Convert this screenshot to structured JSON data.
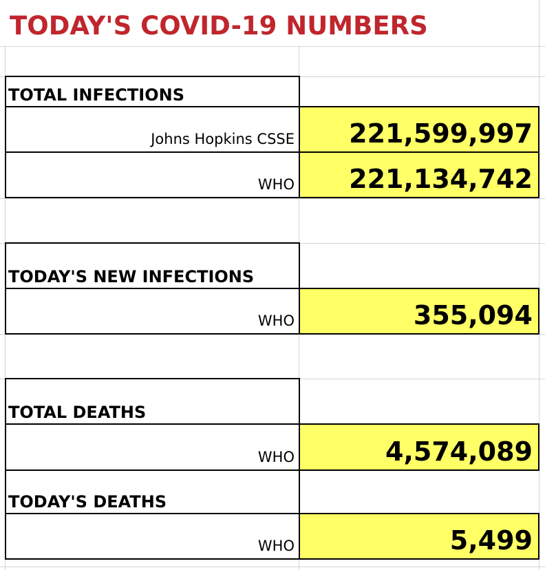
{
  "title": "TODAY'S COVID-19 NUMBERS",
  "sections": {
    "total_infections": {
      "label": "TOTAL INFECTIONS",
      "rows": [
        {
          "source": "Johns Hopkins CSSE",
          "value": "221,599,997"
        },
        {
          "source": "WHO",
          "value": "221,134,742"
        }
      ]
    },
    "new_infections": {
      "label": "TODAY'S NEW INFECTIONS",
      "rows": [
        {
          "source": "WHO",
          "value": "355,094"
        }
      ]
    },
    "total_deaths": {
      "label": "TOTAL DEATHS",
      "rows": [
        {
          "source": "WHO",
          "value": "4,574,089"
        }
      ]
    },
    "todays_deaths": {
      "label": "TODAY'S DEATHS",
      "rows": [
        {
          "source": "WHO",
          "value": "5,499"
        }
      ]
    }
  },
  "colors": {
    "title": "#c0262d",
    "value_fill": "#ffff66"
  }
}
